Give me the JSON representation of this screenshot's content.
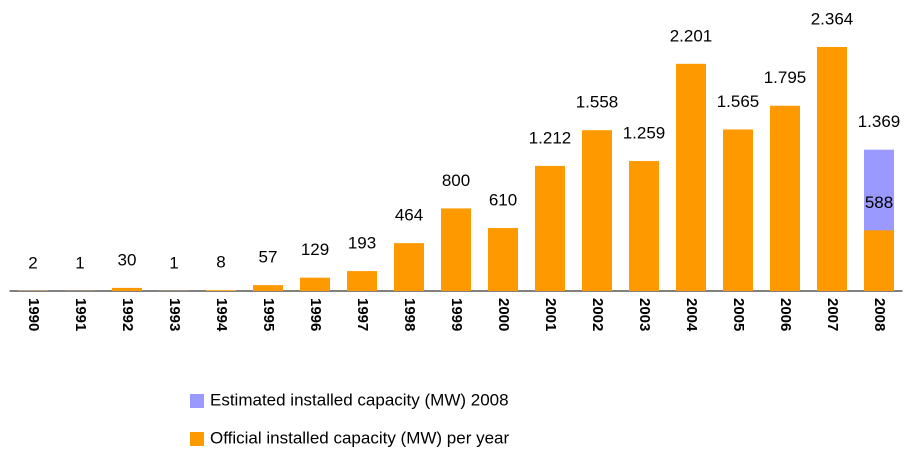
{
  "chart_data": {
    "type": "bar",
    "categories": [
      "1990",
      "1991",
      "1992",
      "1993",
      "1994",
      "1995",
      "1996",
      "1997",
      "1998",
      "1999",
      "2000",
      "2001",
      "2002",
      "2003",
      "2004",
      "2005",
      "2006",
      "2007",
      "2008"
    ],
    "series": [
      {
        "name": "Estimated installed capacity (MW) 2008",
        "color": "#9999ff",
        "values": [
          null,
          null,
          null,
          null,
          null,
          null,
          null,
          null,
          null,
          null,
          null,
          null,
          null,
          null,
          null,
          null,
          null,
          null,
          1369
        ],
        "value_labels": [
          null,
          null,
          null,
          null,
          null,
          null,
          null,
          null,
          null,
          null,
          null,
          null,
          null,
          null,
          null,
          null,
          null,
          null,
          "1.369"
        ]
      },
      {
        "name": "Official installed capacity (MW) per year",
        "color": "#ff9900",
        "values": [
          2,
          1,
          30,
          1,
          8,
          57,
          129,
          193,
          464,
          800,
          610,
          1212,
          1558,
          1259,
          2201,
          1565,
          1795,
          2364,
          588
        ],
        "value_labels": [
          "2",
          "1",
          "30",
          "1",
          "8",
          "57",
          "129",
          "193",
          "464",
          "800",
          "610",
          "1.212",
          "1.558",
          "1.259",
          "2.201",
          "1.565",
          "1.795",
          "2.364",
          "588"
        ]
      }
    ]
  }
}
